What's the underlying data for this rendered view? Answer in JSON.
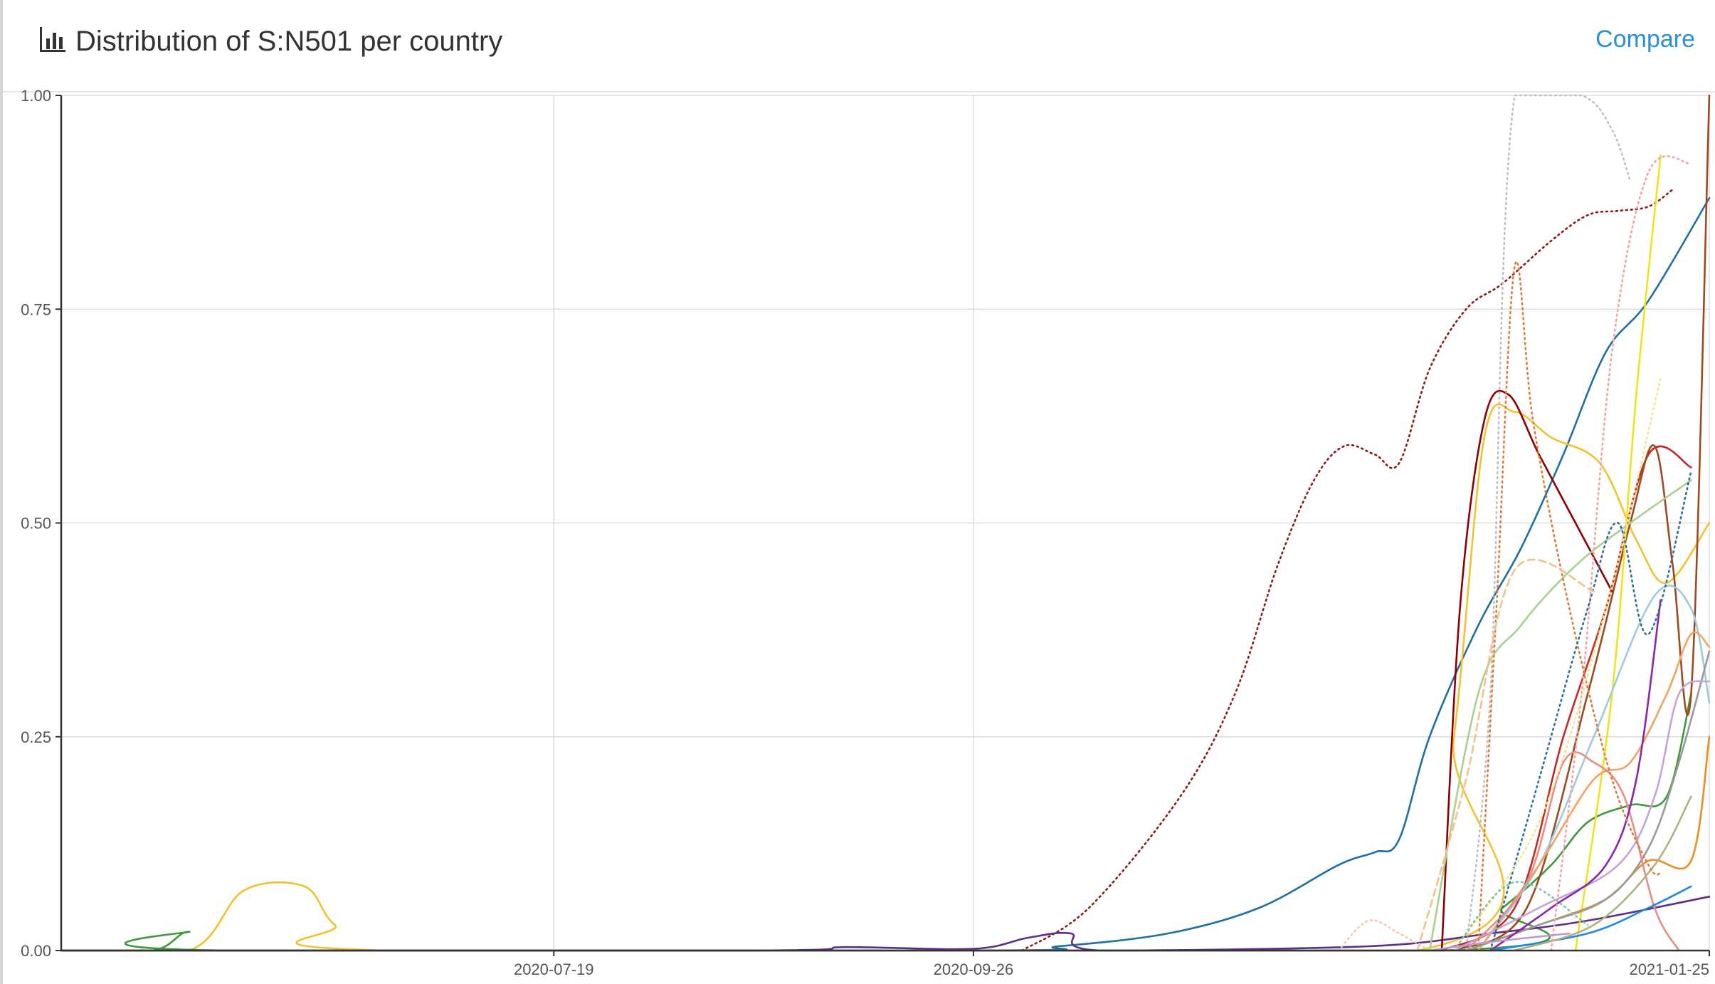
{
  "header": {
    "title": "Distribution of S:N501 per country",
    "compare_label": "Compare",
    "icon": "bar-chart-icon"
  },
  "colors": {
    "accent": "#2a8fd6",
    "grid": "#dddddd",
    "axis": "#333333"
  },
  "chart_data": {
    "type": "line",
    "title": "Distribution of S:N501 per country",
    "xlabel": "",
    "ylabel": "",
    "ylim": [
      0,
      1
    ],
    "xlim": [
      "2020-04-29",
      "2021-01-25"
    ],
    "x_ticks": [
      "2020-07-19",
      "2020-09-26",
      "2021-01-25"
    ],
    "y_ticks": [
      "0.00",
      "0.25",
      "0.50",
      "0.75",
      "1.00"
    ],
    "grid": true,
    "legend": "none",
    "series": [
      {
        "color": "#8c1c13",
        "dash": "dot",
        "points": [
          [
            "2020-10-04",
            0
          ],
          [
            "2020-10-15",
            0.05
          ],
          [
            "2020-10-30",
            0.18
          ],
          [
            "2020-11-08",
            0.3
          ],
          [
            "2020-11-15",
            0.45
          ],
          [
            "2020-11-21",
            0.55
          ],
          [
            "2020-11-26",
            0.59
          ],
          [
            "2020-12-01",
            0.58
          ],
          [
            "2020-12-05",
            0.57
          ],
          [
            "2020-12-10",
            0.68
          ],
          [
            "2020-12-16",
            0.75
          ],
          [
            "2020-12-22",
            0.78
          ],
          [
            "2020-12-30",
            0.83
          ],
          [
            "2021-01-05",
            0.86
          ],
          [
            "2021-01-10",
            0.865
          ],
          [
            "2021-01-15",
            0.87
          ],
          [
            "2021-01-19",
            0.89
          ]
        ]
      },
      {
        "color": "#1f6fa5",
        "dash": "solid",
        "points": [
          [
            "2020-04-29",
            0
          ],
          [
            "2020-09-26",
            0
          ],
          [
            "2020-10-10",
            0.005
          ],
          [
            "2020-10-28",
            0.02
          ],
          [
            "2020-11-12",
            0.05
          ],
          [
            "2020-11-25",
            0.1
          ],
          [
            "2020-12-01",
            0.115
          ],
          [
            "2020-12-05",
            0.13
          ],
          [
            "2020-12-10",
            0.25
          ],
          [
            "2020-12-18",
            0.38
          ],
          [
            "2020-12-25",
            0.47
          ],
          [
            "2021-01-01",
            0.58
          ],
          [
            "2021-01-08",
            0.7
          ],
          [
            "2021-01-15",
            0.76
          ],
          [
            "2021-01-25",
            0.88
          ]
        ]
      },
      {
        "color": "#f2c12e",
        "dash": "solid",
        "points": [
          [
            "2020-04-29",
            0
          ],
          [
            "2020-05-20",
            0
          ],
          [
            "2020-05-29",
            0.07
          ],
          [
            "2020-06-08",
            0.075
          ],
          [
            "2020-06-13",
            0.03
          ],
          [
            "2020-06-22",
            0
          ],
          [
            "2020-12-08",
            0
          ],
          [
            "2020-12-14",
            0.25
          ],
          [
            "2020-12-19",
            0.6
          ],
          [
            "2020-12-24",
            0.63
          ],
          [
            "2020-12-30",
            0.6
          ],
          [
            "2021-01-07",
            0.57
          ],
          [
            "2021-01-13",
            0.48
          ],
          [
            "2021-01-18",
            0.43
          ],
          [
            "2021-01-25",
            0.5
          ]
        ]
      },
      {
        "color": "#3d9a3c",
        "dash": "solid",
        "points": [
          [
            "2020-04-29",
            0
          ],
          [
            "2020-05-14",
            0
          ],
          [
            "2020-05-20",
            0.022
          ],
          [
            "2020-05-26",
            0
          ],
          [
            "2020-12-12",
            0
          ],
          [
            "2020-12-22",
            0.05
          ],
          [
            "2020-12-30",
            0.1
          ],
          [
            "2021-01-05",
            0.15
          ],
          [
            "2021-01-12",
            0.17
          ],
          [
            "2021-01-18",
            0.18
          ],
          [
            "2021-01-22",
            0.3
          ]
        ]
      },
      {
        "color": "#5e2d8c",
        "dash": "solid",
        "points": [
          [
            "2020-04-29",
            0
          ],
          [
            "2020-08-20",
            0
          ],
          [
            "2020-09-05",
            0.004
          ],
          [
            "2020-09-26",
            0.002
          ],
          [
            "2020-10-05",
            0.015
          ],
          [
            "2020-10-12",
            0.02
          ],
          [
            "2020-10-17",
            0
          ],
          [
            "2020-11-30",
            0.005
          ],
          [
            "2020-12-20",
            0.02
          ],
          [
            "2021-01-05",
            0.035
          ],
          [
            "2021-01-25",
            0.063
          ]
        ]
      },
      {
        "color": "#8b0000",
        "dash": "solid",
        "points": [
          [
            "2020-12-12",
            0
          ],
          [
            "2020-12-15",
            0.4
          ],
          [
            "2020-12-19",
            0.62
          ],
          [
            "2020-12-23",
            0.65
          ],
          [
            "2020-12-28",
            0.58
          ],
          [
            "2021-01-03",
            0.5
          ],
          [
            "2021-01-09",
            0.42
          ]
        ]
      },
      {
        "color": "#c62828",
        "dash": "solid",
        "points": [
          [
            "2020-12-12",
            0
          ],
          [
            "2020-12-24",
            0.05
          ],
          [
            "2021-01-01",
            0.25
          ],
          [
            "2021-01-08",
            0.4
          ],
          [
            "2021-01-15",
            0.58
          ],
          [
            "2021-01-22",
            0.565
          ]
        ]
      },
      {
        "color": "#9c4a1e",
        "dash": "solid",
        "points": [
          [
            "2020-12-14",
            0
          ],
          [
            "2020-12-26",
            0.05
          ],
          [
            "2021-01-05",
            0.3
          ],
          [
            "2021-01-12",
            0.5
          ],
          [
            "2021-01-16",
            0.59
          ],
          [
            "2021-01-19",
            0.45
          ],
          [
            "2021-01-22",
            0.3
          ],
          [
            "2021-01-25",
            1.0
          ]
        ]
      },
      {
        "color": "#f0e21c",
        "dash": "solid",
        "points": [
          [
            "2021-01-03",
            0
          ],
          [
            "2021-01-09",
            0.3
          ],
          [
            "2021-01-13",
            0.65
          ],
          [
            "2021-01-17",
            0.93
          ]
        ]
      },
      {
        "color": "#a9d18e",
        "dash": "solid",
        "points": [
          [
            "2020-12-10",
            0
          ],
          [
            "2020-12-18",
            0.3
          ],
          [
            "2020-12-25",
            0.38
          ],
          [
            "2021-01-03",
            0.45
          ],
          [
            "2021-01-12",
            0.5
          ],
          [
            "2021-01-22",
            0.55
          ]
        ]
      },
      {
        "color": "#9ecae1",
        "dash": "solid",
        "points": [
          [
            "2020-12-18",
            0
          ],
          [
            "2020-12-28",
            0.1
          ],
          [
            "2021-01-06",
            0.25
          ],
          [
            "2021-01-16",
            0.415
          ],
          [
            "2021-01-22",
            0.4
          ],
          [
            "2021-01-25",
            0.29
          ]
        ]
      },
      {
        "color": "#f4a261",
        "dash": "solid",
        "points": [
          [
            "2020-12-18",
            0
          ],
          [
            "2020-12-28",
            0.1
          ],
          [
            "2021-01-06",
            0.2
          ],
          [
            "2021-01-12",
            0.22
          ],
          [
            "2021-01-18",
            0.3
          ],
          [
            "2021-01-22",
            0.37
          ],
          [
            "2021-01-25",
            0.355
          ]
        ]
      },
      {
        "color": "#f08c1e",
        "dash": "solid",
        "points": [
          [
            "2020-12-16",
            0
          ],
          [
            "2020-12-28",
            0.03
          ],
          [
            "2021-01-08",
            0.06
          ],
          [
            "2021-01-15",
            0.105
          ],
          [
            "2021-01-22",
            0.105
          ],
          [
            "2021-01-25",
            0.25
          ]
        ]
      },
      {
        "color": "#999999",
        "dash": "solid",
        "points": [
          [
            "2020-12-16",
            0
          ],
          [
            "2020-12-28",
            0.03
          ],
          [
            "2021-01-08",
            0.06
          ],
          [
            "2021-01-15",
            0.12
          ],
          [
            "2021-01-20",
            0.22
          ],
          [
            "2021-01-25",
            0.35
          ]
        ]
      },
      {
        "color": "#c5a3d9",
        "dash": "solid",
        "points": [
          [
            "2020-12-14",
            0
          ],
          [
            "2020-12-28",
            0.05
          ],
          [
            "2021-01-10",
            0.1
          ],
          [
            "2021-01-16",
            0.18
          ],
          [
            "2021-01-20",
            0.3
          ],
          [
            "2021-01-25",
            0.315
          ]
        ]
      },
      {
        "color": "#e88c84",
        "dash": "solid",
        "points": [
          [
            "2020-12-16",
            0
          ],
          [
            "2020-12-26",
            0.08
          ],
          [
            "2021-01-01",
            0.22
          ],
          [
            "2021-01-06",
            0.22
          ],
          [
            "2021-01-11",
            0.18
          ],
          [
            "2021-01-16",
            0.05
          ],
          [
            "2021-01-20",
            0
          ]
        ]
      },
      {
        "color": "#8e24aa",
        "dash": "solid",
        "points": [
          [
            "2020-12-20",
            0
          ],
          [
            "2020-12-30",
            0.05
          ],
          [
            "2021-01-08",
            0.1
          ],
          [
            "2021-01-13",
            0.2
          ],
          [
            "2021-01-17",
            0.41
          ]
        ]
      },
      {
        "color": "#1e88e5",
        "dash": "solid",
        "points": [
          [
            "2020-12-20",
            0
          ],
          [
            "2021-01-05",
            0.02
          ],
          [
            "2021-01-15",
            0.05
          ],
          [
            "2021-01-22",
            0.075
          ]
        ]
      },
      {
        "color": "#b0b27a",
        "dash": "solid",
        "points": [
          [
            "2020-12-24",
            0
          ],
          [
            "2021-01-06",
            0.03
          ],
          [
            "2021-01-16",
            0.1
          ],
          [
            "2021-01-22",
            0.18
          ]
        ]
      },
      {
        "color": "#c0c0c0",
        "dash": "dot",
        "points": [
          [
            "2020-12-16",
            0
          ],
          [
            "2020-12-20",
            0.3
          ],
          [
            "2020-12-24",
            1.0
          ],
          [
            "2021-01-04",
            1.0
          ],
          [
            "2021-01-09",
            0.96
          ],
          [
            "2021-01-12",
            0.9
          ]
        ]
      },
      {
        "color": "#f4a3a3",
        "dash": "dot",
        "points": [
          [
            "2020-12-30",
            0
          ],
          [
            "2021-01-04",
            0.3
          ],
          [
            "2021-01-09",
            0.7
          ],
          [
            "2021-01-15",
            0.91
          ],
          [
            "2021-01-22",
            0.92
          ]
        ]
      },
      {
        "color": "#e07b39",
        "dash": "dot",
        "points": [
          [
            "2020-12-18",
            0
          ],
          [
            "2020-12-21",
            0.4
          ],
          [
            "2020-12-24",
            0.8
          ],
          [
            "2020-12-27",
            0.62
          ],
          [
            "2021-01-02",
            0.4
          ],
          [
            "2021-01-09",
            0.2
          ],
          [
            "2021-01-15",
            0.1
          ],
          [
            "2021-01-17",
            0.09
          ]
        ]
      },
      {
        "color": "#2f6f9f",
        "dash": "dot",
        "points": [
          [
            "2020-12-20",
            0
          ],
          [
            "2020-12-28",
            0.2
          ],
          [
            "2021-01-05",
            0.4
          ],
          [
            "2021-01-10",
            0.5
          ],
          [
            "2021-01-15",
            0.37
          ],
          [
            "2021-01-22",
            0.56
          ]
        ]
      },
      {
        "color": "#f0e68c",
        "dash": "dot",
        "points": [
          [
            "2020-12-14",
            0
          ],
          [
            "2020-12-28",
            0.15
          ],
          [
            "2021-01-08",
            0.4
          ],
          [
            "2021-01-17",
            0.67
          ]
        ]
      },
      {
        "color": "#f5c08a",
        "dash": "dash",
        "points": [
          [
            "2020-12-08",
            0
          ],
          [
            "2020-12-16",
            0.2
          ],
          [
            "2020-12-24",
            0.445
          ],
          [
            "2021-01-06",
            0.42
          ]
        ]
      },
      {
        "color": "#f6c9a8",
        "dash": "dot",
        "points": [
          [
            "2020-11-25",
            0
          ],
          [
            "2020-11-30",
            0.035
          ],
          [
            "2020-12-05",
            0.02
          ],
          [
            "2020-12-10",
            0
          ]
        ]
      },
      {
        "color": "#7fc7a3",
        "dash": "dot",
        "points": [
          [
            "2020-12-14",
            0
          ],
          [
            "2020-12-24",
            0.08
          ],
          [
            "2021-01-05",
            0.03
          ]
        ]
      },
      {
        "color": "#b89cc8",
        "dash": "solid",
        "points": [
          [
            "2020-12-10",
            0
          ],
          [
            "2020-12-20",
            0.01
          ],
          [
            "2021-01-02",
            0.02
          ]
        ]
      }
    ]
  }
}
